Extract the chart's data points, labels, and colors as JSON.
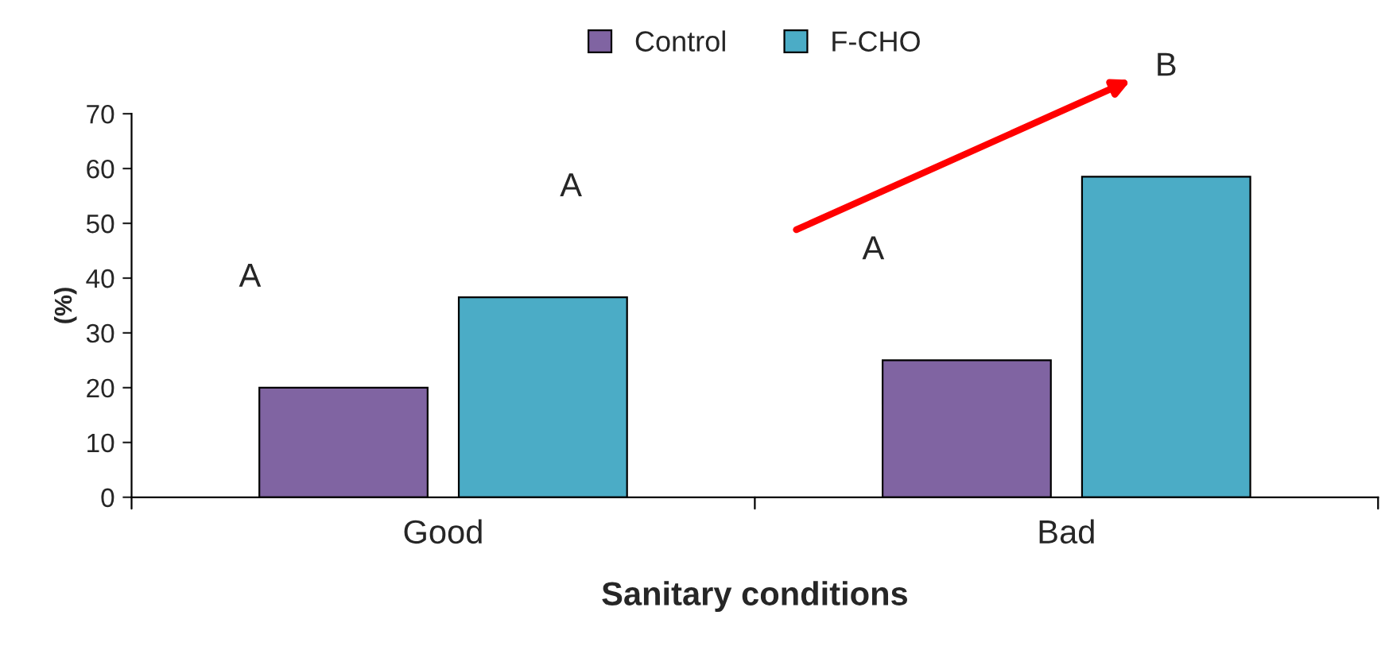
{
  "chart_data": {
    "type": "bar",
    "xlabel": "Sanitary conditions",
    "ylabel": "(%)",
    "categories": [
      "Good",
      "Bad"
    ],
    "series": [
      {
        "name": "Control",
        "color": "#8064a2",
        "values": [
          20,
          25
        ]
      },
      {
        "name": "F-CHO",
        "color": "#4bacc6",
        "values": [
          36.5,
          58.5
        ]
      }
    ],
    "ylim": [
      0,
      70
    ],
    "yticks": [
      0,
      10,
      20,
      30,
      40,
      50,
      60,
      70
    ],
    "legend": "top",
    "grid": false,
    "annotations": [
      "A",
      "A",
      "A",
      "B"
    ]
  }
}
